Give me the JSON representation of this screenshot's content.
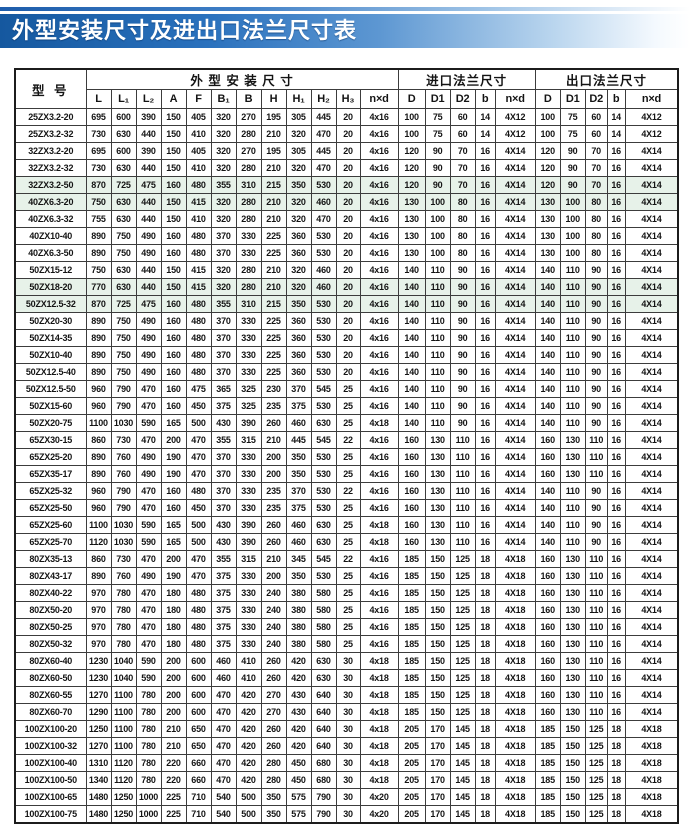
{
  "title": "外型安装尺寸及进出口法兰尺寸表",
  "table": {
    "model_header": "型  号",
    "groups": [
      {
        "label": "外 型 安 装 尺 寸",
        "span": 12
      },
      {
        "label": "进口法兰尺寸",
        "span": 5
      },
      {
        "label": "出口法兰尺寸",
        "span": 5
      }
    ],
    "columns": [
      "L",
      "L₁",
      "L₂",
      "A",
      "F",
      "B₁",
      "B",
      "H",
      "H₁",
      "H₂",
      "H₃",
      "n×d",
      "D",
      "D1",
      "D2",
      "b",
      "n×d",
      "D",
      "D1",
      "D2",
      "b",
      "n×d"
    ],
    "tinted_rows": [
      5,
      6,
      11,
      12
    ],
    "rows": [
      [
        "25ZX3.2-20",
        "695",
        "600",
        "390",
        "150",
        "405",
        "320",
        "270",
        "195",
        "305",
        "445",
        "20",
        "4x16",
        "100",
        "75",
        "60",
        "14",
        "4X12",
        "100",
        "75",
        "60",
        "14",
        "4X12"
      ],
      [
        "25ZX3.2-32",
        "730",
        "630",
        "440",
        "150",
        "410",
        "320",
        "280",
        "210",
        "320",
        "470",
        "20",
        "4x16",
        "100",
        "75",
        "60",
        "14",
        "4X12",
        "100",
        "75",
        "60",
        "14",
        "4X12"
      ],
      [
        "32ZX3.2-20",
        "695",
        "600",
        "390",
        "150",
        "405",
        "320",
        "270",
        "195",
        "305",
        "445",
        "20",
        "4x16",
        "120",
        "90",
        "70",
        "16",
        "4X14",
        "120",
        "90",
        "70",
        "16",
        "4X14"
      ],
      [
        "32ZX3.2-32",
        "730",
        "630",
        "440",
        "150",
        "410",
        "320",
        "280",
        "210",
        "320",
        "470",
        "20",
        "4x16",
        "120",
        "90",
        "70",
        "16",
        "4X14",
        "120",
        "90",
        "70",
        "16",
        "4X14"
      ],
      [
        "32ZX3.2-50",
        "870",
        "725",
        "475",
        "160",
        "480",
        "355",
        "310",
        "215",
        "350",
        "530",
        "20",
        "4x16",
        "120",
        "90",
        "70",
        "16",
        "4X14",
        "120",
        "90",
        "70",
        "16",
        "4X14"
      ],
      [
        "40ZX6.3-20",
        "750",
        "630",
        "440",
        "150",
        "415",
        "320",
        "280",
        "210",
        "320",
        "460",
        "20",
        "4x16",
        "130",
        "100",
        "80",
        "16",
        "4X14",
        "130",
        "100",
        "80",
        "16",
        "4X14"
      ],
      [
        "40ZX6.3-32",
        "755",
        "630",
        "440",
        "150",
        "410",
        "320",
        "280",
        "210",
        "320",
        "470",
        "20",
        "4x16",
        "130",
        "100",
        "80",
        "16",
        "4X14",
        "130",
        "100",
        "80",
        "16",
        "4X14"
      ],
      [
        "40ZX10-40",
        "890",
        "750",
        "490",
        "160",
        "480",
        "370",
        "330",
        "225",
        "360",
        "530",
        "20",
        "4x16",
        "130",
        "100",
        "80",
        "16",
        "4X14",
        "130",
        "100",
        "80",
        "16",
        "4X14"
      ],
      [
        "40ZX6.3-50",
        "890",
        "750",
        "490",
        "160",
        "480",
        "370",
        "330",
        "225",
        "360",
        "530",
        "20",
        "4x16",
        "130",
        "100",
        "80",
        "16",
        "4X14",
        "130",
        "100",
        "80",
        "16",
        "4X14"
      ],
      [
        "50ZX15-12",
        "750",
        "630",
        "440",
        "150",
        "415",
        "320",
        "280",
        "210",
        "320",
        "460",
        "20",
        "4x16",
        "140",
        "110",
        "90",
        "16",
        "4X14",
        "140",
        "110",
        "90",
        "16",
        "4X14"
      ],
      [
        "50ZX18-20",
        "770",
        "630",
        "440",
        "150",
        "415",
        "320",
        "280",
        "210",
        "320",
        "460",
        "20",
        "4x16",
        "140",
        "110",
        "90",
        "16",
        "4X14",
        "140",
        "110",
        "90",
        "16",
        "4X14"
      ],
      [
        "50ZX12.5-32",
        "870",
        "725",
        "475",
        "160",
        "480",
        "355",
        "310",
        "215",
        "350",
        "530",
        "20",
        "4x16",
        "140",
        "110",
        "90",
        "16",
        "4X14",
        "140",
        "110",
        "90",
        "16",
        "4X14"
      ],
      [
        "50ZX20-30",
        "890",
        "750",
        "490",
        "160",
        "480",
        "370",
        "330",
        "225",
        "360",
        "530",
        "20",
        "4x16",
        "140",
        "110",
        "90",
        "16",
        "4X14",
        "140",
        "110",
        "90",
        "16",
        "4X14"
      ],
      [
        "50ZX14-35",
        "890",
        "750",
        "490",
        "160",
        "480",
        "370",
        "330",
        "225",
        "360",
        "530",
        "20",
        "4x16",
        "140",
        "110",
        "90",
        "16",
        "4X14",
        "140",
        "110",
        "90",
        "16",
        "4X14"
      ],
      [
        "50ZX10-40",
        "890",
        "750",
        "490",
        "160",
        "480",
        "370",
        "330",
        "225",
        "360",
        "530",
        "20",
        "4x16",
        "140",
        "110",
        "90",
        "16",
        "4X14",
        "140",
        "110",
        "90",
        "16",
        "4X14"
      ],
      [
        "50ZX12.5-40",
        "890",
        "750",
        "490",
        "160",
        "480",
        "370",
        "330",
        "225",
        "360",
        "530",
        "20",
        "4x16",
        "140",
        "110",
        "90",
        "16",
        "4X14",
        "140",
        "110",
        "90",
        "16",
        "4X14"
      ],
      [
        "50ZX12.5-50",
        "960",
        "790",
        "470",
        "160",
        "475",
        "365",
        "325",
        "230",
        "370",
        "545",
        "25",
        "4x16",
        "140",
        "110",
        "90",
        "16",
        "4X14",
        "140",
        "110",
        "90",
        "16",
        "4X14"
      ],
      [
        "50ZX15-60",
        "960",
        "790",
        "470",
        "160",
        "450",
        "375",
        "325",
        "235",
        "375",
        "530",
        "25",
        "4x16",
        "140",
        "110",
        "90",
        "16",
        "4X14",
        "140",
        "110",
        "90",
        "16",
        "4X14"
      ],
      [
        "50ZX20-75",
        "1100",
        "1030",
        "590",
        "165",
        "500",
        "430",
        "390",
        "260",
        "460",
        "630",
        "25",
        "4x18",
        "140",
        "110",
        "90",
        "16",
        "4X14",
        "140",
        "110",
        "90",
        "16",
        "4X14"
      ],
      [
        "65ZX30-15",
        "860",
        "730",
        "470",
        "200",
        "470",
        "355",
        "315",
        "210",
        "445",
        "545",
        "22",
        "4x16",
        "160",
        "130",
        "110",
        "16",
        "4X14",
        "160",
        "130",
        "110",
        "16",
        "4X14"
      ],
      [
        "65ZX25-20",
        "890",
        "760",
        "490",
        "190",
        "470",
        "370",
        "330",
        "200",
        "350",
        "530",
        "25",
        "4x16",
        "160",
        "130",
        "110",
        "16",
        "4X14",
        "160",
        "130",
        "110",
        "16",
        "4X14"
      ],
      [
        "65ZX35-17",
        "890",
        "760",
        "490",
        "190",
        "470",
        "370",
        "330",
        "200",
        "350",
        "530",
        "25",
        "4x16",
        "160",
        "130",
        "110",
        "16",
        "4X14",
        "160",
        "130",
        "110",
        "16",
        "4X14"
      ],
      [
        "65ZX25-32",
        "960",
        "790",
        "470",
        "160",
        "480",
        "370",
        "330",
        "235",
        "370",
        "530",
        "22",
        "4x16",
        "160",
        "130",
        "110",
        "16",
        "4X14",
        "140",
        "110",
        "90",
        "16",
        "4X14"
      ],
      [
        "65ZX25-50",
        "960",
        "790",
        "470",
        "160",
        "450",
        "370",
        "330",
        "235",
        "375",
        "530",
        "25",
        "4x16",
        "160",
        "130",
        "110",
        "16",
        "4X14",
        "140",
        "110",
        "90",
        "16",
        "4X14"
      ],
      [
        "65ZX25-60",
        "1100",
        "1030",
        "590",
        "165",
        "500",
        "430",
        "390",
        "260",
        "460",
        "630",
        "25",
        "4x18",
        "160",
        "130",
        "110",
        "16",
        "4X14",
        "140",
        "110",
        "90",
        "16",
        "4X14"
      ],
      [
        "65ZX25-70",
        "1120",
        "1030",
        "590",
        "165",
        "500",
        "430",
        "390",
        "260",
        "460",
        "630",
        "25",
        "4x18",
        "160",
        "130",
        "110",
        "16",
        "4X14",
        "140",
        "110",
        "90",
        "16",
        "4X14"
      ],
      [
        "80ZX35-13",
        "860",
        "730",
        "470",
        "200",
        "470",
        "355",
        "315",
        "210",
        "345",
        "545",
        "22",
        "4x16",
        "185",
        "150",
        "125",
        "18",
        "4X18",
        "160",
        "130",
        "110",
        "16",
        "4X14"
      ],
      [
        "80ZX43-17",
        "890",
        "760",
        "490",
        "190",
        "470",
        "375",
        "330",
        "200",
        "350",
        "530",
        "25",
        "4x16",
        "185",
        "150",
        "125",
        "18",
        "4X18",
        "160",
        "130",
        "110",
        "16",
        "4X14"
      ],
      [
        "80ZX40-22",
        "970",
        "780",
        "470",
        "180",
        "480",
        "375",
        "330",
        "240",
        "380",
        "580",
        "25",
        "4x16",
        "185",
        "150",
        "125",
        "18",
        "4X18",
        "160",
        "130",
        "110",
        "16",
        "4X14"
      ],
      [
        "80ZX50-20",
        "970",
        "780",
        "470",
        "180",
        "480",
        "375",
        "330",
        "240",
        "380",
        "580",
        "25",
        "4x16",
        "185",
        "150",
        "125",
        "18",
        "4X18",
        "160",
        "130",
        "110",
        "16",
        "4X14"
      ],
      [
        "80ZX50-25",
        "970",
        "780",
        "470",
        "180",
        "480",
        "375",
        "330",
        "240",
        "380",
        "580",
        "25",
        "4x16",
        "185",
        "150",
        "125",
        "18",
        "4X18",
        "160",
        "130",
        "110",
        "16",
        "4X14"
      ],
      [
        "80ZX50-32",
        "970",
        "780",
        "470",
        "180",
        "480",
        "375",
        "330",
        "240",
        "380",
        "580",
        "25",
        "4x16",
        "185",
        "150",
        "125",
        "18",
        "4X18",
        "160",
        "130",
        "110",
        "16",
        "4X14"
      ],
      [
        "80ZX60-40",
        "1230",
        "1040",
        "590",
        "200",
        "600",
        "460",
        "410",
        "260",
        "420",
        "630",
        "30",
        "4x18",
        "185",
        "150",
        "125",
        "18",
        "4X18",
        "160",
        "130",
        "110",
        "16",
        "4X14"
      ],
      [
        "80ZX60-50",
        "1230",
        "1040",
        "590",
        "200",
        "600",
        "460",
        "410",
        "260",
        "420",
        "630",
        "30",
        "4x18",
        "185",
        "150",
        "125",
        "18",
        "4X18",
        "160",
        "130",
        "110",
        "16",
        "4X14"
      ],
      [
        "80ZX60-55",
        "1270",
        "1100",
        "780",
        "200",
        "600",
        "470",
        "420",
        "270",
        "430",
        "640",
        "30",
        "4x18",
        "185",
        "150",
        "125",
        "18",
        "4X18",
        "160",
        "130",
        "110",
        "16",
        "4X14"
      ],
      [
        "80ZX60-70",
        "1290",
        "1100",
        "780",
        "200",
        "600",
        "470",
        "420",
        "270",
        "430",
        "640",
        "30",
        "4x18",
        "185",
        "150",
        "125",
        "18",
        "4X18",
        "160",
        "130",
        "110",
        "16",
        "4X14"
      ],
      [
        "100ZX100-20",
        "1250",
        "1100",
        "780",
        "210",
        "650",
        "470",
        "420",
        "260",
        "420",
        "640",
        "30",
        "4x18",
        "205",
        "170",
        "145",
        "18",
        "4X18",
        "185",
        "150",
        "125",
        "18",
        "4X18"
      ],
      [
        "100ZX100-32",
        "1270",
        "1100",
        "780",
        "210",
        "650",
        "470",
        "420",
        "260",
        "420",
        "640",
        "30",
        "4x18",
        "205",
        "170",
        "145",
        "18",
        "4X18",
        "185",
        "150",
        "125",
        "18",
        "4X18"
      ],
      [
        "100ZX100-40",
        "1310",
        "1120",
        "780",
        "220",
        "660",
        "470",
        "420",
        "280",
        "450",
        "680",
        "30",
        "4x18",
        "205",
        "170",
        "145",
        "18",
        "4X18",
        "185",
        "150",
        "125",
        "18",
        "4X18"
      ],
      [
        "100ZX100-50",
        "1340",
        "1120",
        "780",
        "220",
        "660",
        "470",
        "420",
        "280",
        "450",
        "680",
        "30",
        "4x18",
        "205",
        "170",
        "145",
        "18",
        "4X18",
        "185",
        "150",
        "125",
        "18",
        "4X18"
      ],
      [
        "100ZX100-65",
        "1480",
        "1250",
        "1000",
        "225",
        "710",
        "540",
        "500",
        "350",
        "575",
        "790",
        "30",
        "4x20",
        "205",
        "170",
        "145",
        "18",
        "4X18",
        "185",
        "150",
        "125",
        "18",
        "4X18"
      ],
      [
        "100ZX100-75",
        "1480",
        "1250",
        "1000",
        "225",
        "710",
        "540",
        "500",
        "350",
        "575",
        "790",
        "30",
        "4x20",
        "205",
        "170",
        "145",
        "18",
        "4X18",
        "185",
        "150",
        "125",
        "18",
        "4X18"
      ]
    ]
  }
}
